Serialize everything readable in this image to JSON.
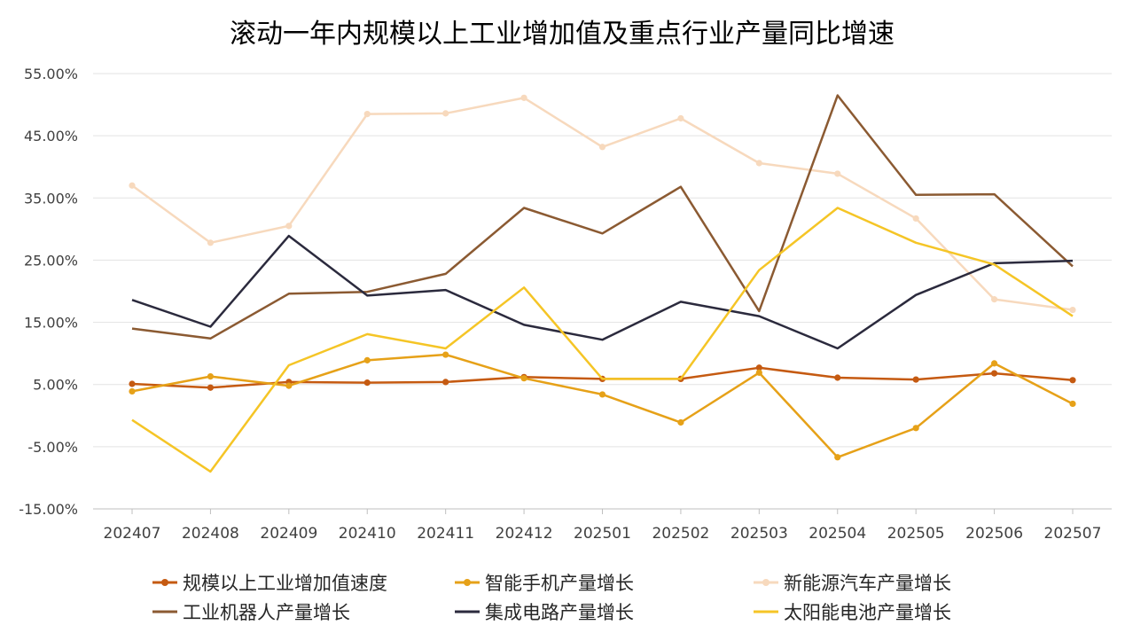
{
  "chart_data": {
    "type": "line",
    "title": "滚动一年内规模以上工业增加值及重点行业产量同比增速",
    "xlabel": "",
    "ylabel": "",
    "categories": [
      "202407",
      "202408",
      "202409",
      "202410",
      "202411",
      "202412",
      "202501",
      "202502",
      "202503",
      "202504",
      "202505",
      "202506",
      "202507"
    ],
    "y_ticks": [
      "-15.00%",
      "-5.00%",
      "5.00%",
      "15.00%",
      "25.00%",
      "35.00%",
      "45.00%",
      "55.00%"
    ],
    "ylim": [
      -15,
      55
    ],
    "grid": true,
    "legend_position": "bottom",
    "series": [
      {
        "name": "规模以上工业增加值速度",
        "color": "#c55a11",
        "width": 2.5,
        "marker": true,
        "values": [
          5.1,
          4.5,
          5.4,
          5.3,
          5.4,
          6.2,
          5.9,
          5.9,
          7.7,
          6.1,
          5.8,
          6.8,
          5.7
        ]
      },
      {
        "name": "智能手机产量增长",
        "color": "#e6a118",
        "width": 2.5,
        "marker": true,
        "values": [
          3.9,
          6.3,
          4.8,
          8.9,
          9.8,
          6.0,
          3.4,
          -1.1,
          6.9,
          -6.7,
          -2.0,
          8.4,
          1.9
        ]
      },
      {
        "name": "新能源汽车产量增长",
        "color": "#f7d9bd",
        "width": 2.5,
        "marker": true,
        "values": [
          37.0,
          27.8,
          30.5,
          48.5,
          48.6,
          51.1,
          43.2,
          47.8,
          40.6,
          38.9,
          31.7,
          18.7,
          17.0
        ]
      },
      {
        "name": "工业机器人产量增长",
        "color": "#8b5a32",
        "width": 2.5,
        "marker": false,
        "values": [
          14.0,
          12.4,
          19.6,
          19.9,
          22.8,
          33.4,
          29.3,
          36.8,
          16.8,
          51.5,
          35.5,
          35.6,
          24.0
        ]
      },
      {
        "name": "集成电路产量增长",
        "color": "#2b2a3d",
        "width": 2.5,
        "marker": false,
        "values": [
          18.6,
          14.3,
          28.9,
          19.3,
          20.2,
          14.6,
          12.2,
          18.3,
          16.0,
          10.8,
          19.4,
          24.5,
          24.9
        ]
      },
      {
        "name": "太阳能电池产量增长",
        "color": "#f5c526",
        "width": 2.5,
        "marker": false,
        "values": [
          -0.7,
          -9.0,
          8.1,
          13.1,
          10.8,
          20.6,
          5.9,
          5.9,
          23.4,
          33.4,
          27.8,
          24.3,
          16.0
        ]
      }
    ]
  }
}
